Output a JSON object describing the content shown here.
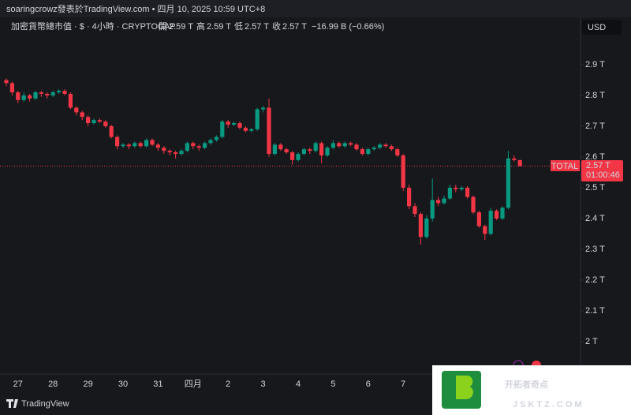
{
  "header": {
    "text": "soaringcrowz發表於TradingView.com • 四月 10, 2025 10:59 UTC+8"
  },
  "legend": {
    "symbol": "加密貨幣總市值 · $ · 4小時 · CRYPTOCAP",
    "open_label": "開",
    "open": "2.59 T",
    "high_label": "高",
    "high": "2.59 T",
    "low_label": "低",
    "low": "2.57 T",
    "close_label": "收",
    "close": "2.57 T",
    "change": "−16.99 B (−0.66%)"
  },
  "currency_button": "USD",
  "price_tag": {
    "name": "TOTAL",
    "price": "2.57 T",
    "countdown": "01:00:46"
  },
  "footer": "TradingView",
  "watermark": {
    "title": "开拓者奇点",
    "url": "JSKTZ.COM"
  },
  "chart_data": {
    "type": "candlestick",
    "up_color": "#089981",
    "down_color": "#f23645",
    "grid": false,
    "ylim": [
      1.905,
      2.987
    ],
    "yticks": [
      {
        "value": 2.9,
        "label": "2.9 T"
      },
      {
        "value": 2.8,
        "label": "2.8 T"
      },
      {
        "value": 2.7,
        "label": "2.7 T"
      },
      {
        "value": 2.6,
        "label": "2.6 T"
      },
      {
        "value": 2.5,
        "label": "2.5 T"
      },
      {
        "value": 2.4,
        "label": "2.4 T"
      },
      {
        "value": 2.3,
        "label": "2.3 T"
      },
      {
        "value": 2.2,
        "label": "2.2 T"
      },
      {
        "value": 2.1,
        "label": "2.1 T"
      },
      {
        "value": 2,
        "label": "2 T"
      }
    ],
    "categories": [
      null,
      null,
      "27",
      null,
      null,
      null,
      null,
      null,
      "28",
      null,
      null,
      null,
      null,
      null,
      "29",
      null,
      null,
      null,
      null,
      null,
      "30",
      null,
      null,
      null,
      null,
      null,
      "31",
      null,
      null,
      null,
      null,
      null,
      "四月",
      null,
      null,
      null,
      null,
      null,
      "2",
      null,
      null,
      null,
      null,
      null,
      "3",
      null,
      null,
      null,
      null,
      null,
      "4",
      null,
      null,
      null,
      null,
      null,
      "5",
      null,
      null,
      null,
      null,
      null,
      "6",
      null,
      null,
      null,
      null,
      null,
      "7",
      null,
      null,
      null,
      null,
      null,
      null,
      null,
      null,
      null,
      null,
      null,
      null,
      null,
      null,
      null,
      null,
      null,
      null,
      null,
      null,
      null,
      null
    ],
    "candles": [
      {
        "o": 2.85,
        "h": 2.855,
        "l": 2.83,
        "c": 2.84
      },
      {
        "o": 2.84,
        "h": 2.845,
        "l": 2.8,
        "c": 2.81
      },
      {
        "o": 2.81,
        "h": 2.815,
        "l": 2.775,
        "c": 2.785
      },
      {
        "o": 2.785,
        "h": 2.81,
        "l": 2.78,
        "c": 2.8
      },
      {
        "o": 2.8,
        "h": 2.805,
        "l": 2.78,
        "c": 2.79
      },
      {
        "o": 2.79,
        "h": 2.815,
        "l": 2.785,
        "c": 2.81
      },
      {
        "o": 2.81,
        "h": 2.815,
        "l": 2.795,
        "c": 2.805
      },
      {
        "o": 2.805,
        "h": 2.81,
        "l": 2.79,
        "c": 2.8
      },
      {
        "o": 2.8,
        "h": 2.815,
        "l": 2.795,
        "c": 2.81
      },
      {
        "o": 2.81,
        "h": 2.82,
        "l": 2.805,
        "c": 2.815
      },
      {
        "o": 2.815,
        "h": 2.82,
        "l": 2.8,
        "c": 2.805
      },
      {
        "o": 2.805,
        "h": 2.81,
        "l": 2.755,
        "c": 2.76
      },
      {
        "o": 2.76,
        "h": 2.765,
        "l": 2.735,
        "c": 2.745
      },
      {
        "o": 2.745,
        "h": 2.75,
        "l": 2.72,
        "c": 2.73
      },
      {
        "o": 2.73,
        "h": 2.735,
        "l": 2.7,
        "c": 2.71
      },
      {
        "o": 2.71,
        "h": 2.725,
        "l": 2.705,
        "c": 2.72
      },
      {
        "o": 2.72,
        "h": 2.725,
        "l": 2.71,
        "c": 2.715
      },
      {
        "o": 2.715,
        "h": 2.72,
        "l": 2.695,
        "c": 2.7
      },
      {
        "o": 2.7,
        "h": 2.705,
        "l": 2.66,
        "c": 2.665
      },
      {
        "o": 2.665,
        "h": 2.67,
        "l": 2.625,
        "c": 2.635
      },
      {
        "o": 2.635,
        "h": 2.645,
        "l": 2.63,
        "c": 2.64
      },
      {
        "o": 2.64,
        "h": 2.645,
        "l": 2.625,
        "c": 2.635
      },
      {
        "o": 2.635,
        "h": 2.65,
        "l": 2.63,
        "c": 2.645
      },
      {
        "o": 2.645,
        "h": 2.65,
        "l": 2.63,
        "c": 2.635
      },
      {
        "o": 2.635,
        "h": 2.66,
        "l": 2.63,
        "c": 2.655
      },
      {
        "o": 2.655,
        "h": 2.66,
        "l": 2.635,
        "c": 2.64
      },
      {
        "o": 2.64,
        "h": 2.645,
        "l": 2.62,
        "c": 2.63
      },
      {
        "o": 2.63,
        "h": 2.635,
        "l": 2.61,
        "c": 2.62
      },
      {
        "o": 2.62,
        "h": 2.625,
        "l": 2.605,
        "c": 2.615
      },
      {
        "o": 2.615,
        "h": 2.62,
        "l": 2.595,
        "c": 2.61
      },
      {
        "o": 2.61,
        "h": 2.625,
        "l": 2.605,
        "c": 2.62
      },
      {
        "o": 2.62,
        "h": 2.65,
        "l": 2.615,
        "c": 2.645
      },
      {
        "o": 2.645,
        "h": 2.65,
        "l": 2.625,
        "c": 2.635
      },
      {
        "o": 2.635,
        "h": 2.64,
        "l": 2.62,
        "c": 2.63
      },
      {
        "o": 2.63,
        "h": 2.65,
        "l": 2.625,
        "c": 2.645
      },
      {
        "o": 2.645,
        "h": 2.66,
        "l": 2.64,
        "c": 2.655
      },
      {
        "o": 2.655,
        "h": 2.67,
        "l": 2.65,
        "c": 2.665
      },
      {
        "o": 2.665,
        "h": 2.72,
        "l": 2.66,
        "c": 2.715
      },
      {
        "o": 2.715,
        "h": 2.72,
        "l": 2.695,
        "c": 2.705
      },
      {
        "o": 2.705,
        "h": 2.715,
        "l": 2.7,
        "c": 2.71
      },
      {
        "o": 2.71,
        "h": 2.715,
        "l": 2.69,
        "c": 2.695
      },
      {
        "o": 2.695,
        "h": 2.7,
        "l": 2.68,
        "c": 2.685
      },
      {
        "o": 2.685,
        "h": 2.695,
        "l": 2.68,
        "c": 2.69
      },
      {
        "o": 2.69,
        "h": 2.76,
        "l": 2.685,
        "c": 2.755
      },
      {
        "o": 2.755,
        "h": 2.765,
        "l": 2.745,
        "c": 2.76
      },
      {
        "o": 2.76,
        "h": 2.79,
        "l": 2.6,
        "c": 2.61
      },
      {
        "o": 2.61,
        "h": 2.645,
        "l": 2.605,
        "c": 2.64
      },
      {
        "o": 2.64,
        "h": 2.645,
        "l": 2.62,
        "c": 2.625
      },
      {
        "o": 2.625,
        "h": 2.63,
        "l": 2.61,
        "c": 2.615
      },
      {
        "o": 2.615,
        "h": 2.62,
        "l": 2.575,
        "c": 2.59
      },
      {
        "o": 2.59,
        "h": 2.615,
        "l": 2.585,
        "c": 2.61
      },
      {
        "o": 2.61,
        "h": 2.63,
        "l": 2.605,
        "c": 2.625
      },
      {
        "o": 2.625,
        "h": 2.63,
        "l": 2.61,
        "c": 2.62
      },
      {
        "o": 2.62,
        "h": 2.65,
        "l": 2.615,
        "c": 2.645
      },
      {
        "o": 2.645,
        "h": 2.65,
        "l": 2.58,
        "c": 2.605
      },
      {
        "o": 2.605,
        "h": 2.635,
        "l": 2.6,
        "c": 2.63
      },
      {
        "o": 2.63,
        "h": 2.655,
        "l": 2.625,
        "c": 2.645
      },
      {
        "o": 2.645,
        "h": 2.65,
        "l": 2.63,
        "c": 2.635
      },
      {
        "o": 2.635,
        "h": 2.65,
        "l": 2.63,
        "c": 2.645
      },
      {
        "o": 2.645,
        "h": 2.65,
        "l": 2.635,
        "c": 2.64
      },
      {
        "o": 2.64,
        "h": 2.645,
        "l": 2.62,
        "c": 2.625
      },
      {
        "o": 2.625,
        "h": 2.63,
        "l": 2.605,
        "c": 2.61
      },
      {
        "o": 2.61,
        "h": 2.63,
        "l": 2.605,
        "c": 2.625
      },
      {
        "o": 2.625,
        "h": 2.635,
        "l": 2.62,
        "c": 2.63
      },
      {
        "o": 2.63,
        "h": 2.645,
        "l": 2.625,
        "c": 2.64
      },
      {
        "o": 2.64,
        "h": 2.645,
        "l": 2.63,
        "c": 2.635
      },
      {
        "o": 2.635,
        "h": 2.64,
        "l": 2.62,
        "c": 2.625
      },
      {
        "o": 2.625,
        "h": 2.63,
        "l": 2.6,
        "c": 2.605
      },
      {
        "o": 2.605,
        "h": 2.61,
        "l": 2.49,
        "c": 2.5
      },
      {
        "o": 2.5,
        "h": 2.51,
        "l": 2.43,
        "c": 2.44
      },
      {
        "o": 2.44,
        "h": 2.45,
        "l": 2.405,
        "c": 2.415
      },
      {
        "o": 2.415,
        "h": 2.42,
        "l": 2.315,
        "c": 2.34
      },
      {
        "o": 2.34,
        "h": 2.41,
        "l": 2.335,
        "c": 2.4
      },
      {
        "o": 2.4,
        "h": 2.53,
        "l": 2.39,
        "c": 2.46
      },
      {
        "o": 2.46,
        "h": 2.47,
        "l": 2.44,
        "c": 2.45
      },
      {
        "o": 2.45,
        "h": 2.475,
        "l": 2.445,
        "c": 2.465
      },
      {
        "o": 2.465,
        "h": 2.51,
        "l": 2.46,
        "c": 2.5
      },
      {
        "o": 2.5,
        "h": 2.51,
        "l": 2.485,
        "c": 2.495
      },
      {
        "o": 2.495,
        "h": 2.505,
        "l": 2.49,
        "c": 2.5
      },
      {
        "o": 2.5,
        "h": 2.505,
        "l": 2.465,
        "c": 2.47
      },
      {
        "o": 2.47,
        "h": 2.475,
        "l": 2.415,
        "c": 2.42
      },
      {
        "o": 2.42,
        "h": 2.425,
        "l": 2.37,
        "c": 2.375
      },
      {
        "o": 2.375,
        "h": 2.38,
        "l": 2.33,
        "c": 2.35
      },
      {
        "o": 2.35,
        "h": 2.435,
        "l": 2.345,
        "c": 2.425
      },
      {
        "o": 2.425,
        "h": 2.43,
        "l": 2.395,
        "c": 2.4
      },
      {
        "o": 2.4,
        "h": 2.44,
        "l": 2.395,
        "c": 2.435
      },
      {
        "o": 2.435,
        "h": 2.62,
        "l": 2.43,
        "c": 2.595
      },
      {
        "o": 2.595,
        "h": 2.605,
        "l": 2.585,
        "c": 2.59
      },
      {
        "o": 2.59,
        "h": 2.59,
        "l": 2.57,
        "c": 2.57
      }
    ]
  }
}
